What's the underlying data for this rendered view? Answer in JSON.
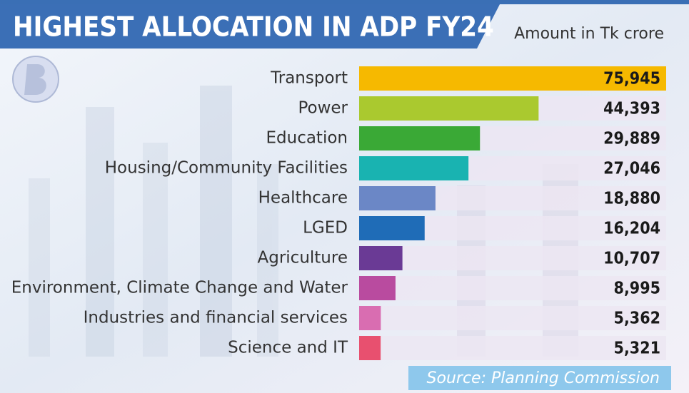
{
  "chart_data": {
    "type": "bar",
    "orientation": "horizontal",
    "title": "HIGHEST ALLOCATION IN ADP FY24",
    "subtitle": "Amount in Tk crore",
    "source": "Source: Planning Commission",
    "categories": [
      "Transport",
      "Power",
      "Education",
      "Housing/Community Facilities",
      "Healthcare",
      "LGED",
      "Agriculture",
      "Environment, Climate Change and Water",
      "Industries and financial services",
      "Science and IT"
    ],
    "values": [
      75945,
      44393,
      29889,
      27046,
      18880,
      16204,
      10707,
      8995,
      5362,
      5321
    ],
    "value_labels": [
      "75,945",
      "44,393",
      "29,889",
      "27,046",
      "18,880",
      "16,204",
      "10,707",
      "8,995",
      "5,362",
      "5,321"
    ],
    "colors": [
      "#f6b900",
      "#aac92f",
      "#3aa936",
      "#19b3b1",
      "#6b87c6",
      "#1f6cb7",
      "#6a3a95",
      "#b94b9f",
      "#d96db1",
      "#e8506f"
    ]
  }
}
